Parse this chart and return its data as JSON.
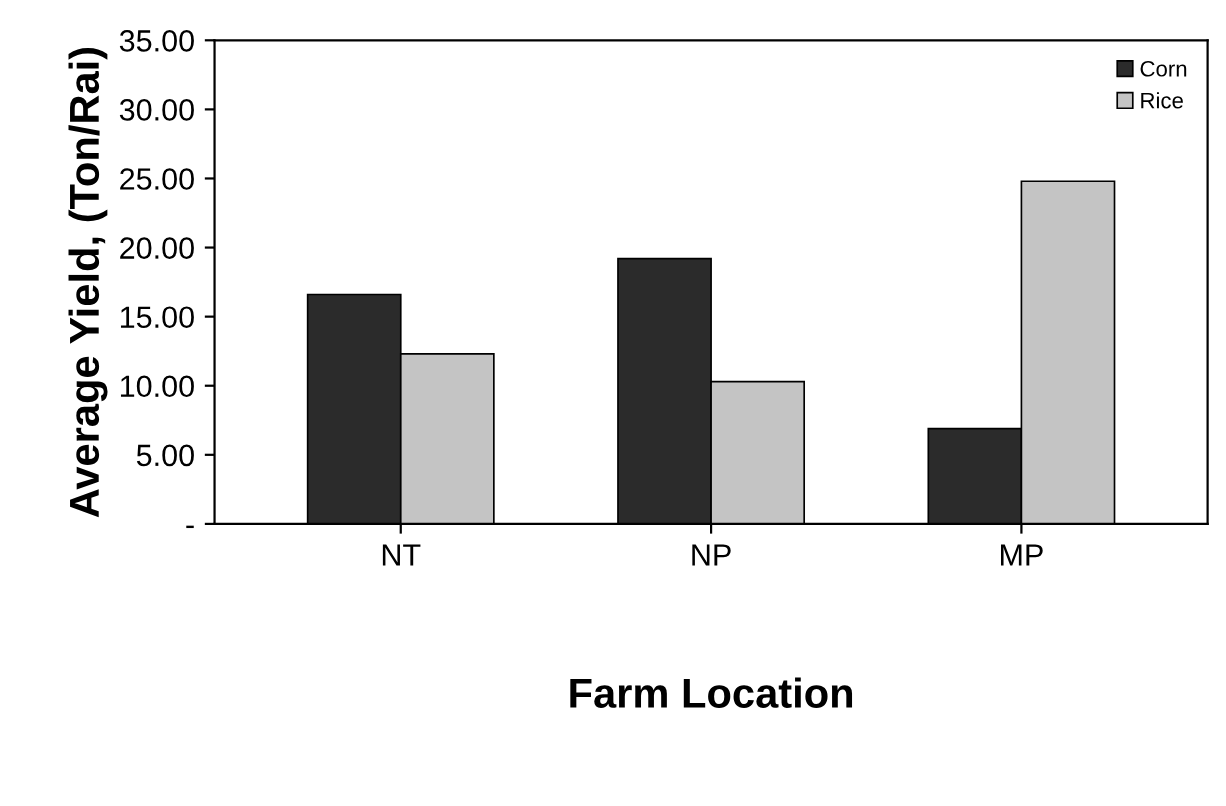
{
  "chart_data": {
    "type": "bar",
    "xlabel": "Farm Location",
    "ylabel": "Average Yield, (Ton/Rai)",
    "categories": [
      "NT",
      "NP",
      "MP"
    ],
    "series": [
      {
        "name": "Corn",
        "color": "#2b2b2b",
        "values": [
          16.6,
          19.2,
          6.9
        ]
      },
      {
        "name": "Rice",
        "color": "#c4c4c4",
        "values": [
          12.3,
          10.3,
          24.8
        ]
      }
    ],
    "ylim": [
      0,
      35
    ],
    "yticks": [
      {
        "value": 0,
        "label": "-"
      },
      {
        "value": 5,
        "label": "5.00"
      },
      {
        "value": 10,
        "label": "10.00"
      },
      {
        "value": 15,
        "label": "15.00"
      },
      {
        "value": 20,
        "label": "20.00"
      },
      {
        "value": 25,
        "label": "25.00"
      },
      {
        "value": 30,
        "label": "30.00"
      },
      {
        "value": 35,
        "label": "35.00"
      }
    ],
    "grid": false,
    "legend": "top right"
  }
}
